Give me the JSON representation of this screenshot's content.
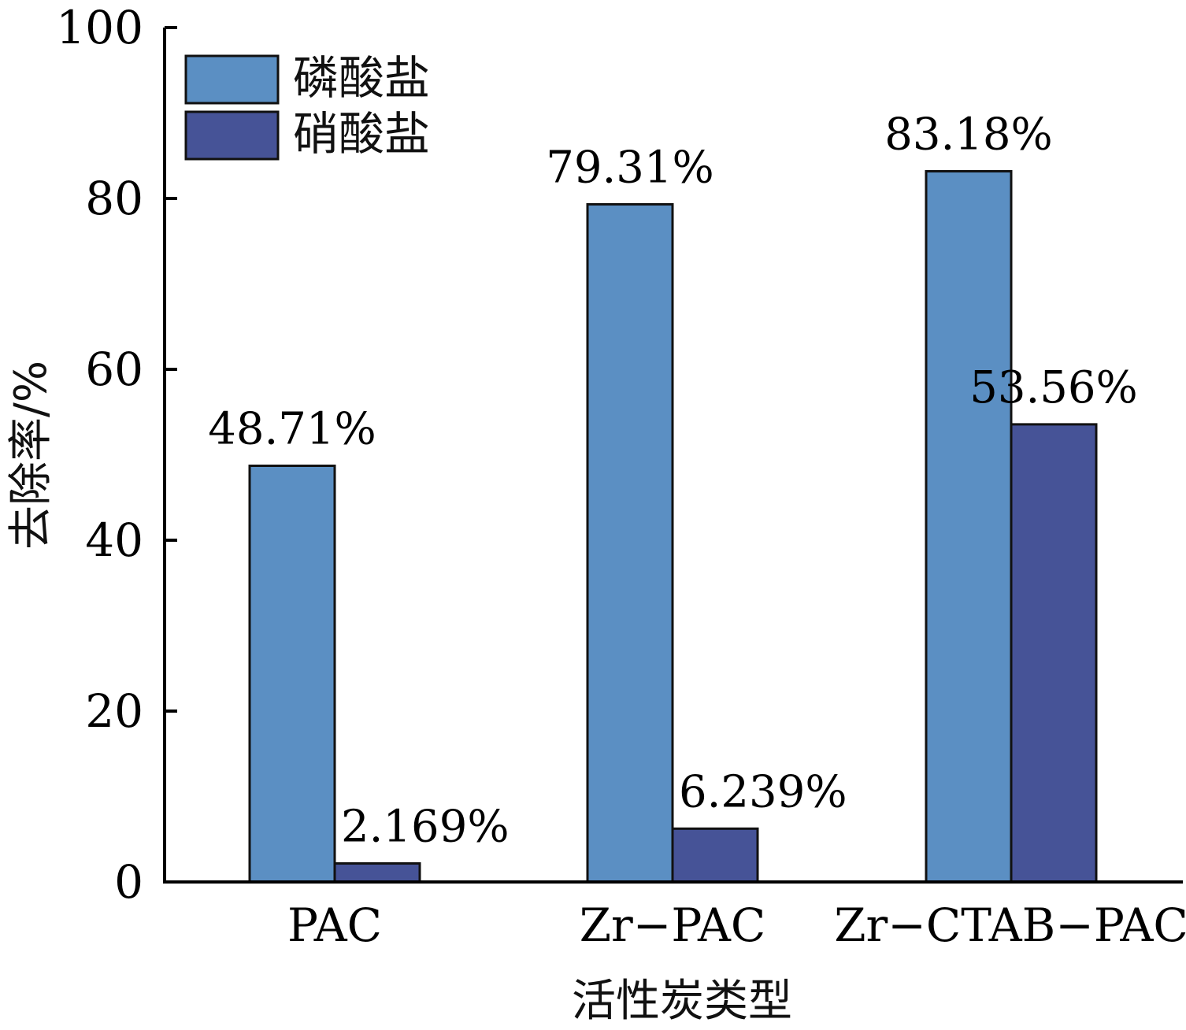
{
  "chart_data": {
    "type": "bar",
    "title": "",
    "xlabel": "活性炭类型",
    "ylabel": "去除率/%",
    "ylim": [
      0,
      100
    ],
    "yticks": [
      0,
      20,
      40,
      60,
      80,
      100
    ],
    "categories": [
      "PAC",
      "Zr−PAC",
      "Zr−CTAB−PAC"
    ],
    "series": [
      {
        "name": "磷酸盐",
        "color": "#5B8FC3",
        "values": [
          48.71,
          79.31,
          83.18
        ],
        "labels": [
          "48.71%",
          "79.31%",
          "83.18%"
        ]
      },
      {
        "name": "硝酸盐",
        "color": "#465397",
        "values": [
          2.169,
          6.239,
          53.56
        ],
        "labels": [
          "2.169%",
          "6.239%",
          "53.56%"
        ]
      }
    ],
    "legend_position": "top-left",
    "grid": false
  }
}
